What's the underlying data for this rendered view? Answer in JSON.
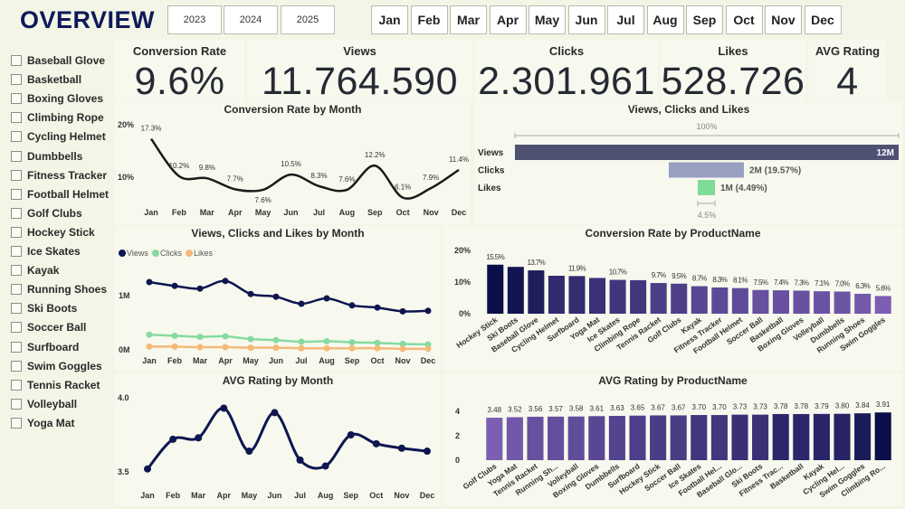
{
  "header": {
    "title": "OVERVIEW",
    "years": [
      "2023",
      "2024",
      "2025"
    ],
    "months": [
      "Jan",
      "Feb",
      "Mar",
      "Apr",
      "May",
      "Jun",
      "Jul",
      "Aug",
      "Sep",
      "Oct",
      "Nov",
      "Dec"
    ]
  },
  "sidebar": {
    "items": [
      "Baseball Glove",
      "Basketball",
      "Boxing Gloves",
      "Climbing Rope",
      "Cycling Helmet",
      "Dumbbells",
      "Fitness Tracker",
      "Football Helmet",
      "Golf Clubs",
      "Hockey Stick",
      "Ice Skates",
      "Kayak",
      "Running Shoes",
      "Ski Boots",
      "Soccer Ball",
      "Surfboard",
      "Swim Goggles",
      "Tennis Racket",
      "Volleyball",
      "Yoga Mat"
    ]
  },
  "kpis": [
    {
      "label": "Conversion Rate",
      "value": "9.6%"
    },
    {
      "label": "Views",
      "value": "11.764.590"
    },
    {
      "label": "Clicks",
      "value": "2.301.961"
    },
    {
      "label": "Likes",
      "value": "528.726"
    },
    {
      "label": "AVG Rating",
      "value": "4"
    }
  ],
  "colors": {
    "navy": "#0f1a5a",
    "line": "#1a1a1a",
    "views": "#0d1650",
    "clicks": "#86dba0",
    "likes": "#f5b97a",
    "funnel_views": "#4f5173",
    "funnel_clicks": "#97a0c0",
    "funnel_likes": "#7fdc98",
    "bar_dark": "#0a0f4a",
    "bar_light": "#7c5fb4"
  },
  "chart_data": [
    {
      "id": "conv_month",
      "type": "line",
      "title": "Conversion Rate by Month",
      "categories": [
        "Jan",
        "Feb",
        "Mar",
        "Apr",
        "May",
        "Jun",
        "Jul",
        "Aug",
        "Sep",
        "Oct",
        "Nov",
        "Dec"
      ],
      "values": [
        17.3,
        10.2,
        9.8,
        7.7,
        7.6,
        10.5,
        8.3,
        7.6,
        12.2,
        6.1,
        7.9,
        11.4
      ],
      "labels": [
        "17.3%",
        "10.2%",
        "9.8%",
        "7.7%",
        "7.6%",
        "10.5%",
        "8.3%",
        "7.6%",
        "12.2%",
        "6.1%",
        "7.9%",
        "11.4%"
      ],
      "yticks": [
        "10%",
        "20%"
      ],
      "ytick_values": [
        10,
        20
      ]
    },
    {
      "id": "funnel",
      "type": "bar",
      "title": "Views, Clicks and Likes",
      "categories": [
        "Views",
        "Clicks",
        "Likes"
      ],
      "values": [
        11764590,
        2301961,
        528726
      ],
      "labels": [
        "12M",
        "2M (19.57%)",
        "1M (4.49%)"
      ],
      "top_label": "100%",
      "bottom_label": "4.5%"
    },
    {
      "id": "vcl_month",
      "type": "line",
      "title": "Views, Clicks and Likes by Month",
      "categories": [
        "Jan",
        "Feb",
        "Mar",
        "Apr",
        "May",
        "Jun",
        "Jul",
        "Aug",
        "Sep",
        "Oct",
        "Nov",
        "Dec"
      ],
      "series": [
        {
          "name": "Views",
          "values": [
            1.25,
            1.18,
            1.13,
            1.27,
            1.03,
            0.98,
            0.85,
            0.95,
            0.82,
            0.78,
            0.71,
            0.72
          ]
        },
        {
          "name": "Clicks",
          "values": [
            0.28,
            0.26,
            0.24,
            0.25,
            0.2,
            0.18,
            0.15,
            0.16,
            0.14,
            0.13,
            0.11,
            0.1
          ]
        },
        {
          "name": "Likes",
          "values": [
            0.06,
            0.06,
            0.05,
            0.05,
            0.04,
            0.04,
            0.03,
            0.03,
            0.03,
            0.03,
            0.02,
            0.02
          ]
        }
      ],
      "unit": "M",
      "yticks": [
        "0M",
        "1M"
      ],
      "ytick_values": [
        0,
        1
      ]
    },
    {
      "id": "conv_product",
      "type": "bar",
      "title": "Conversion Rate by ProductName",
      "categories": [
        "Hockey Stick",
        "Ski Boots",
        "Baseball Glove",
        "Cycling Helmet",
        "Surfboard",
        "Yoga Mat",
        "Ice Skates",
        "Climbing Rope",
        "Tennis Racket",
        "Golf Clubs",
        "Kayak",
        "Fitness Tracker",
        "Football Helmet",
        "Soccer Ball",
        "Basketball",
        "Boxing Gloves",
        "Volleyball",
        "Dumbbells",
        "Running Shoes",
        "Swim Goggles"
      ],
      "values": [
        15.5,
        14.8,
        13.7,
        12.0,
        11.9,
        11.3,
        10.7,
        10.6,
        9.7,
        9.5,
        8.7,
        8.3,
        8.1,
        7.5,
        7.4,
        7.3,
        7.1,
        7.0,
        6.3,
        5.6
      ],
      "labels": [
        "15.5%",
        "",
        "13.7%",
        "",
        "11.9%",
        "",
        "10.7%",
        "",
        "9.7%",
        "9.5%",
        "8.7%",
        "8.3%",
        "8.1%",
        "7.5%",
        "7.4%",
        "7.3%",
        "7.1%",
        "7.0%",
        "6.3%",
        "5.6%"
      ],
      "yticks": [
        "0%",
        "10%",
        "20%"
      ],
      "ytick_values": [
        0,
        10,
        20
      ]
    },
    {
      "id": "rating_month",
      "type": "line",
      "title": "AVG Rating by Month",
      "categories": [
        "Jan",
        "Feb",
        "Mar",
        "Apr",
        "May",
        "Jun",
        "Jul",
        "Aug",
        "Sep",
        "Oct",
        "Nov",
        "Dec"
      ],
      "values": [
        3.52,
        3.72,
        3.73,
        3.93,
        3.64,
        3.9,
        3.58,
        3.54,
        3.75,
        3.69,
        3.66,
        3.64
      ],
      "yticks": [
        "3.5",
        "4.0"
      ],
      "ytick_values": [
        3.5,
        4.0
      ]
    },
    {
      "id": "rating_product",
      "type": "bar",
      "title": "AVG Rating by ProductName",
      "categories": [
        "Golf Clubs",
        "Yoga Mat",
        "Tennis Racket",
        "Running Sh...",
        "Volleyball",
        "Boxing Gloves",
        "Dumbbells",
        "Surfboard",
        "Hockey Stick",
        "Soccer Ball",
        "Ice Skates",
        "Football Hel...",
        "Baseball Glo...",
        "Ski Boots",
        "Fitness Trac...",
        "Basketball",
        "Kayak",
        "Cycling Hel...",
        "Swim Goggles",
        "Climbing Ro..."
      ],
      "values": [
        3.48,
        3.52,
        3.56,
        3.57,
        3.58,
        3.61,
        3.63,
        3.65,
        3.67,
        3.67,
        3.7,
        3.7,
        3.73,
        3.73,
        3.78,
        3.78,
        3.79,
        3.8,
        3.84,
        3.91
      ],
      "labels": [
        "3.48",
        "3.52",
        "3.56",
        "3.57",
        "3.58",
        "3.61",
        "3.63",
        "3.65",
        "3.67",
        "3.67",
        "3.70",
        "3.70",
        "3.73",
        "3.73",
        "3.78",
        "3.78",
        "3.79",
        "3.80",
        "3.84",
        "3.91"
      ],
      "yticks": [
        "0",
        "2",
        "4"
      ],
      "ytick_values": [
        0,
        2,
        4
      ]
    }
  ]
}
